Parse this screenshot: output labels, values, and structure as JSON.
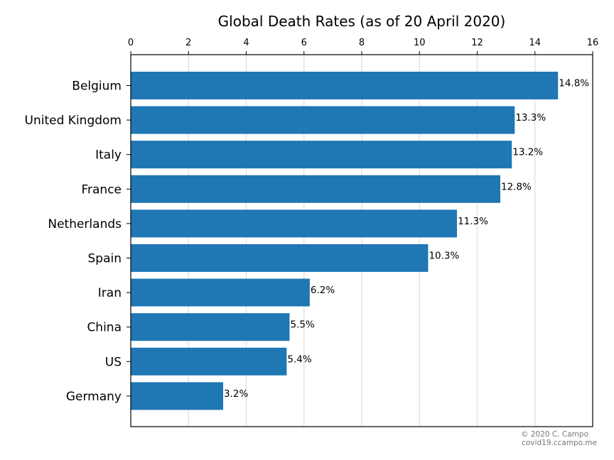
{
  "chart_data": {
    "type": "bar",
    "orientation": "horizontal",
    "title": "Global Death Rates (as of 20 April 2020)",
    "xlabel": "",
    "ylabel": "",
    "xlim": [
      0,
      16
    ],
    "xticks": [
      0,
      2,
      4,
      6,
      8,
      10,
      12,
      14,
      16
    ],
    "x_axis_position": "top",
    "grid": "vertical",
    "color": "#1f77b4",
    "categories": [
      "Belgium",
      "United Kingdom",
      "Italy",
      "France",
      "Netherlands",
      "Spain",
      "Iran",
      "China",
      "US",
      "Germany"
    ],
    "values": [
      14.8,
      13.3,
      13.2,
      12.8,
      11.3,
      10.3,
      6.2,
      5.5,
      5.4,
      3.2
    ],
    "data_labels": [
      "14.8%",
      "13.3%",
      "13.2%",
      "12.8%",
      "11.3%",
      "10.3%",
      "6.2%",
      "5.5%",
      "5.4%",
      "3.2%"
    ]
  },
  "credit": {
    "line1": "© 2020 C. Campo",
    "line2": "covid19.ccampo.me"
  }
}
